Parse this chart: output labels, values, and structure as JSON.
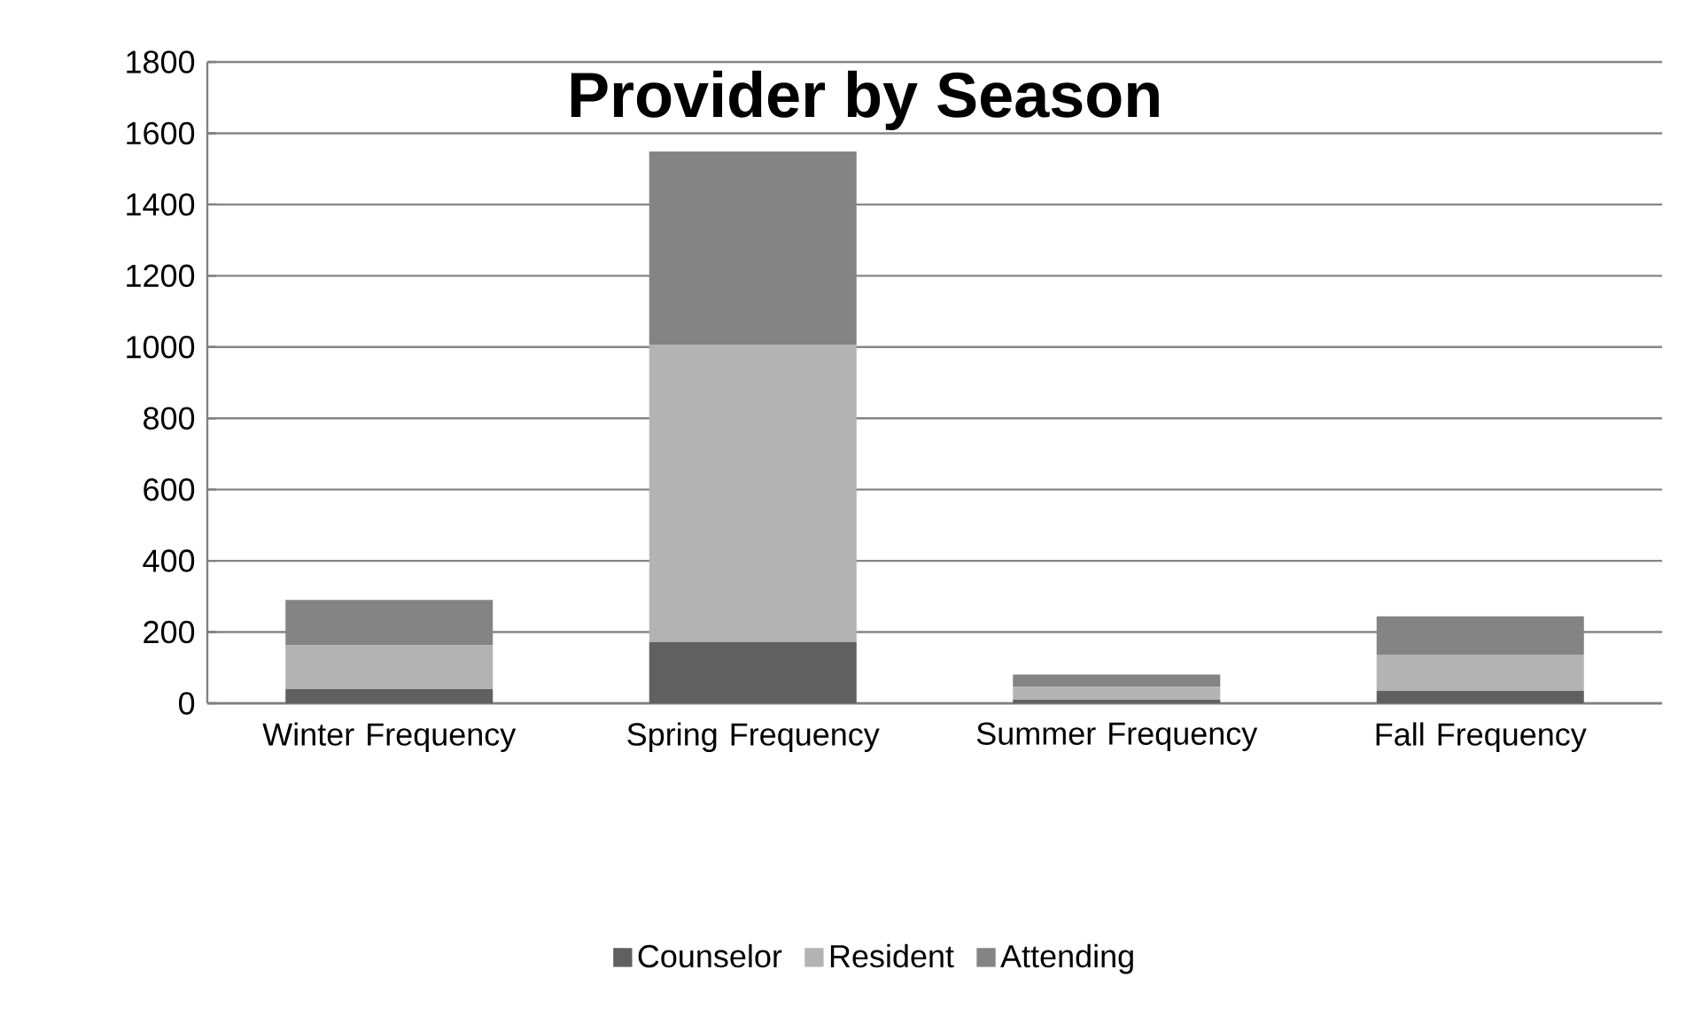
{
  "chart_data": {
    "type": "bar",
    "stacked": true,
    "title": "Provider by Season",
    "categories": [
      "Winter Frequency",
      "Spring Frequency",
      "Summer Frequency",
      "Fall Frequency"
    ],
    "series": [
      {
        "name": "Counselor",
        "color": "#606060",
        "values": [
          40,
          172,
          10,
          35
        ]
      },
      {
        "name": "Resident",
        "color": "#b3b3b3",
        "values": [
          123,
          835,
          36,
          102
        ]
      },
      {
        "name": "Attending",
        "color": "#848484",
        "values": [
          127,
          542,
          35,
          107
        ]
      }
    ],
    "ylim": [
      0,
      1800
    ],
    "yticks": [
      0,
      200,
      400,
      600,
      800,
      1000,
      1200,
      1400,
      1600,
      1800
    ],
    "grid": "y",
    "legend": "bottom"
  }
}
